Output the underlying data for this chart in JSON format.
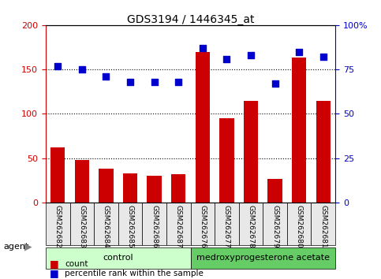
{
  "title": "GDS3194 / 1446345_at",
  "samples": [
    "GSM262682",
    "GSM262683",
    "GSM262684",
    "GSM262685",
    "GSM262686",
    "GSM262687",
    "GSM262676",
    "GSM262677",
    "GSM262678",
    "GSM262679",
    "GSM262680",
    "GSM262681"
  ],
  "counts": [
    62,
    48,
    38,
    33,
    30,
    32,
    170,
    95,
    115,
    27,
    163,
    115
  ],
  "percentiles": [
    77,
    75,
    71,
    68,
    68,
    68,
    87,
    81,
    83,
    67,
    85,
    82
  ],
  "bar_color": "#cc0000",
  "dot_color": "#0000cc",
  "left_ylim": [
    0,
    200
  ],
  "right_ylim": [
    0,
    100
  ],
  "left_yticks": [
    0,
    50,
    100,
    150,
    200
  ],
  "right_yticks": [
    0,
    25,
    50,
    75,
    100
  ],
  "right_yticklabels": [
    "0",
    "25",
    "50",
    "75",
    "100%"
  ],
  "group1_label": "control",
  "group2_label": "medroxyprogesterone acetate",
  "group1_color": "#ccffcc",
  "group2_color": "#66cc66",
  "agent_label": "agent",
  "legend_count": "count",
  "legend_pct": "percentile rank within the sample",
  "grid_color": "black",
  "background_color": "#e8e8e8"
}
